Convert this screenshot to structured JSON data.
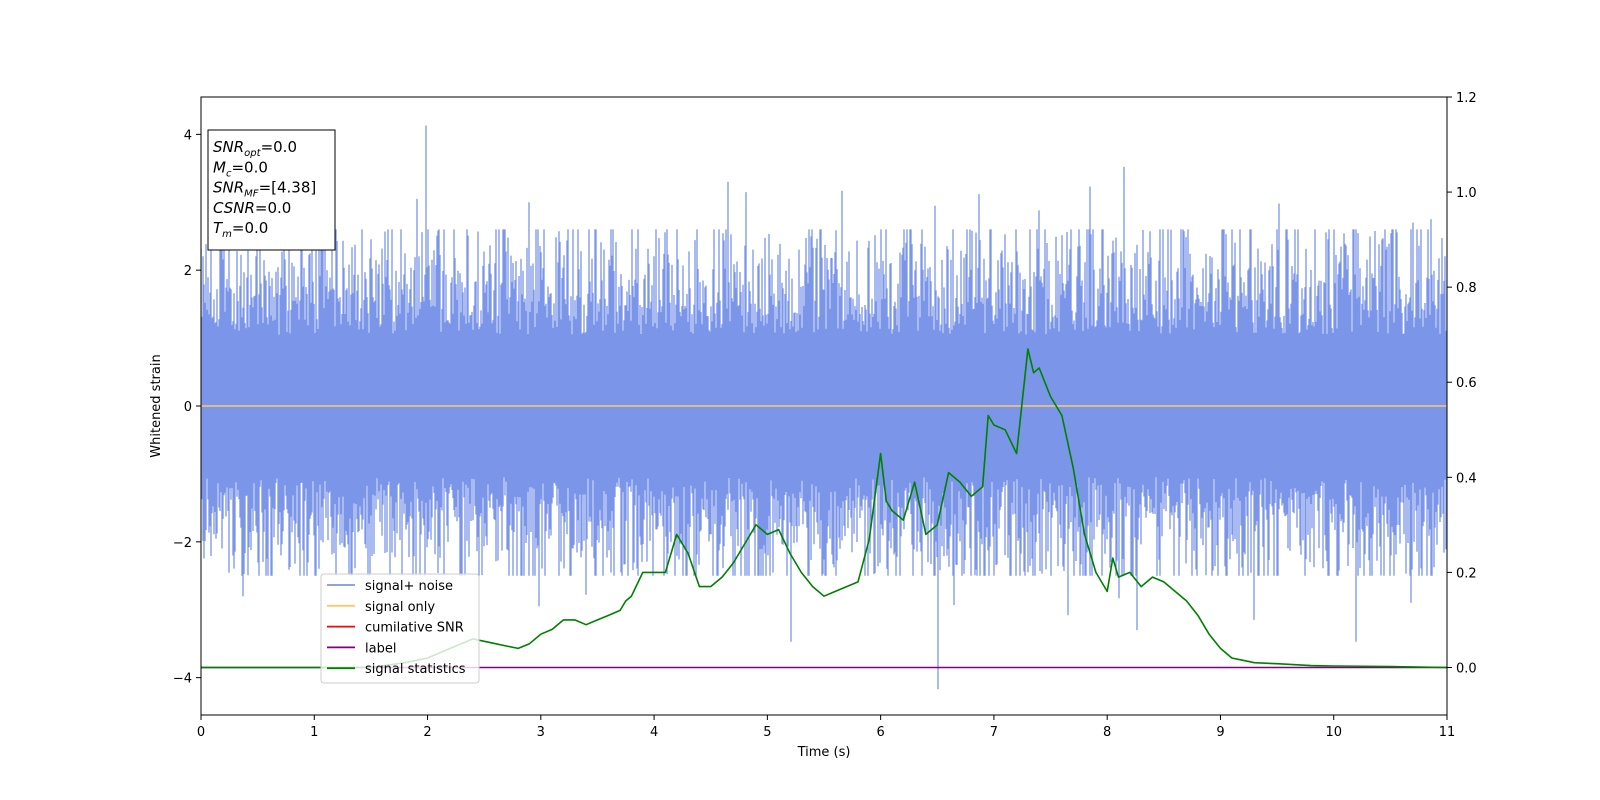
{
  "chart_data": {
    "type": "line",
    "xlabel": "Time (s)",
    "ylabel": "Whitened strain",
    "xlim": [
      0,
      11
    ],
    "ylim": [
      -4.55,
      4.55
    ],
    "ylim_right": [
      -0.1,
      1.2
    ],
    "x_ticks": [
      "0",
      "1",
      "2",
      "3",
      "4",
      "5",
      "6",
      "7",
      "8",
      "9",
      "10",
      "11"
    ],
    "y_ticks_left": [
      "−4",
      "−2",
      "0",
      "2",
      "4"
    ],
    "y_ticks_left_values": [
      -4,
      -2,
      0,
      2,
      4
    ],
    "y_ticks_right": [
      "0.0",
      "0.2",
      "0.4",
      "0.6",
      "0.8",
      "1.0",
      "1.2"
    ],
    "y_ticks_right_values": [
      0.0,
      0.2,
      0.4,
      0.6,
      0.8,
      1.0,
      1.2
    ],
    "legend_position": "lower-left",
    "series": [
      {
        "name": "signal+ noise",
        "color": "#7b96e8",
        "axis": "left",
        "kind": "noise",
        "noise": {
          "x_range": [
            0,
            11
          ],
          "typical_band": [
            -1.6,
            1.5
          ],
          "envelope": [
            -2.5,
            2.6
          ]
        },
        "spikes": [
          {
            "x": 1.99,
            "y": 4.13
          },
          {
            "x": 1.91,
            "y": 3.05
          },
          {
            "x": 0.17,
            "y": 2.65
          },
          {
            "x": 8.15,
            "y": 3.52
          },
          {
            "x": 7.85,
            "y": 3.23
          },
          {
            "x": 4.65,
            "y": 3.3
          },
          {
            "x": 4.81,
            "y": 3.15
          },
          {
            "x": 5.66,
            "y": 3.17
          },
          {
            "x": 6.87,
            "y": 3.12
          },
          {
            "x": 10.86,
            "y": 2.75
          },
          {
            "x": 10.7,
            "y": 2.7
          },
          {
            "x": 9.52,
            "y": 2.98
          },
          {
            "x": 6.48,
            "y": 2.95
          },
          {
            "x": 1.2,
            "y": 2.43
          },
          {
            "x": 7.4,
            "y": 2.88
          },
          {
            "x": 2.9,
            "y": 3.0
          },
          {
            "x": 6.51,
            "y": -4.17
          },
          {
            "x": 5.21,
            "y": -3.47
          },
          {
            "x": 8.26,
            "y": -3.3
          },
          {
            "x": 10.2,
            "y": -3.47
          },
          {
            "x": 9.3,
            "y": -3.15
          },
          {
            "x": 7.65,
            "y": -3.08
          },
          {
            "x": 6.65,
            "y": -2.93
          },
          {
            "x": 2.98,
            "y": -2.95
          },
          {
            "x": 0.37,
            "y": -2.8
          },
          {
            "x": 3.4,
            "y": -2.78
          },
          {
            "x": 8.1,
            "y": -2.83
          },
          {
            "x": 10.68,
            "y": -2.9
          }
        ]
      },
      {
        "name": "signal only",
        "color": "#ffc966",
        "axis": "left",
        "x": [
          0,
          11
        ],
        "y": [
          0,
          0
        ]
      },
      {
        "name": "cumilative SNR",
        "color": "#ff0000",
        "axis": "left",
        "x": [],
        "y": []
      },
      {
        "name": "label",
        "color": "#800080",
        "axis": "right",
        "x": [
          0,
          11
        ],
        "y": [
          0.0,
          0.0
        ]
      },
      {
        "name": "signal statistics",
        "color": "#008000",
        "axis": "right",
        "x": [
          0,
          0.5,
          1.0,
          1.5,
          1.8,
          2.0,
          2.1,
          2.2,
          2.3,
          2.4,
          2.5,
          2.6,
          2.7,
          2.8,
          2.9,
          3.0,
          3.1,
          3.2,
          3.3,
          3.4,
          3.5,
          3.6,
          3.7,
          3.75,
          3.8,
          3.9,
          4.0,
          4.1,
          4.2,
          4.3,
          4.4,
          4.5,
          4.6,
          4.7,
          4.8,
          4.9,
          5.0,
          5.1,
          5.2,
          5.3,
          5.4,
          5.5,
          5.6,
          5.7,
          5.8,
          5.9,
          6.0,
          6.05,
          6.1,
          6.2,
          6.3,
          6.4,
          6.5,
          6.6,
          6.7,
          6.8,
          6.9,
          6.95,
          7.0,
          7.1,
          7.2,
          7.3,
          7.35,
          7.4,
          7.5,
          7.6,
          7.7,
          7.8,
          7.9,
          8.0,
          8.05,
          8.1,
          8.2,
          8.3,
          8.4,
          8.5,
          8.6,
          8.7,
          8.8,
          8.9,
          9.0,
          9.1,
          9.2,
          9.3,
          9.5,
          9.8,
          10.0,
          10.5,
          11.0
        ],
        "y": [
          0.0,
          0.0,
          0.0,
          0.0,
          0.01,
          0.02,
          0.03,
          0.04,
          0.05,
          0.06,
          0.055,
          0.05,
          0.045,
          0.04,
          0.05,
          0.07,
          0.08,
          0.1,
          0.1,
          0.09,
          0.1,
          0.11,
          0.12,
          0.14,
          0.15,
          0.2,
          0.2,
          0.2,
          0.28,
          0.24,
          0.17,
          0.17,
          0.19,
          0.22,
          0.26,
          0.3,
          0.28,
          0.29,
          0.24,
          0.2,
          0.17,
          0.15,
          0.16,
          0.17,
          0.18,
          0.27,
          0.45,
          0.35,
          0.33,
          0.31,
          0.39,
          0.28,
          0.3,
          0.41,
          0.39,
          0.36,
          0.38,
          0.53,
          0.51,
          0.5,
          0.45,
          0.67,
          0.62,
          0.63,
          0.57,
          0.53,
          0.42,
          0.28,
          0.2,
          0.16,
          0.23,
          0.19,
          0.2,
          0.17,
          0.19,
          0.18,
          0.16,
          0.14,
          0.11,
          0.07,
          0.04,
          0.02,
          0.015,
          0.01,
          0.008,
          0.004,
          0.003,
          0.002,
          0.0
        ]
      }
    ],
    "info_box": [
      {
        "var": "SNR",
        "sub": "opt",
        "value": "=0.0"
      },
      {
        "var": "M",
        "sub": "c",
        "value": "=0.0"
      },
      {
        "var": "SNR",
        "sub": "MF",
        "value": "=[4.38]"
      },
      {
        "var": "CSNR",
        "sub": "",
        "value": "=0.0"
      },
      {
        "var": "T",
        "sub": "m",
        "value": "=0.0"
      }
    ]
  }
}
